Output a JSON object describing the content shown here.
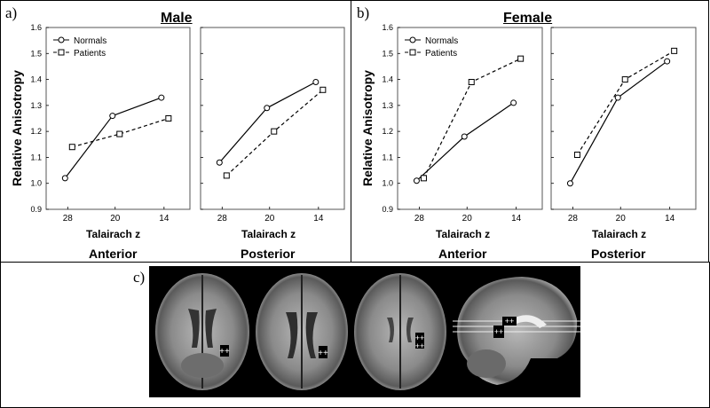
{
  "panels": {
    "a": {
      "letter": "a)",
      "title": "Male"
    },
    "b": {
      "letter": "b)",
      "title": "Female"
    },
    "c": {
      "letter": "c)"
    }
  },
  "axis_text": {
    "ylabel": "Relative Anisotropy",
    "xlabel": "Talairach z",
    "region_anterior": "Anterior",
    "region_posterior": "Posterior"
  },
  "legend": {
    "normals": "Normals",
    "patients": "Patients"
  },
  "colors": {
    "line": "#000000",
    "marker_fill": "#ffffff",
    "grid_border": "#555555"
  },
  "chart_data": [
    {
      "type": "line",
      "panel": "a",
      "sex": "Male",
      "region": "Anterior",
      "categories": [
        "28",
        "20",
        "14"
      ],
      "xlabel": "Talairach z",
      "ylabel": "Relative Anisotropy",
      "ylim": [
        0.9,
        1.6
      ],
      "yticks": [
        0.9,
        1.0,
        1.1,
        1.2,
        1.3,
        1.4,
        1.5,
        1.6
      ],
      "legend_position": "top-left",
      "series": [
        {
          "name": "Normals",
          "marker": "circle",
          "line": "solid",
          "values": [
            1.02,
            1.26,
            1.33
          ]
        },
        {
          "name": "Patients",
          "marker": "square",
          "line": "dashed",
          "values": [
            1.14,
            1.19,
            1.25
          ]
        }
      ]
    },
    {
      "type": "line",
      "panel": "a",
      "sex": "Male",
      "region": "Posterior",
      "categories": [
        "28",
        "20",
        "14"
      ],
      "xlabel": "Talairach z",
      "ylim": [
        0.9,
        1.6
      ],
      "series": [
        {
          "name": "Normals",
          "marker": "circle",
          "line": "solid",
          "values": [
            1.08,
            1.29,
            1.39
          ]
        },
        {
          "name": "Patients",
          "marker": "square",
          "line": "dashed",
          "values": [
            1.03,
            1.2,
            1.36
          ]
        }
      ]
    },
    {
      "type": "line",
      "panel": "b",
      "sex": "Female",
      "region": "Anterior",
      "categories": [
        "28",
        "20",
        "14"
      ],
      "xlabel": "Talairach z",
      "ylabel": "Relative Anisotropy",
      "ylim": [
        0.9,
        1.6
      ],
      "yticks": [
        0.9,
        1.0,
        1.1,
        1.2,
        1.3,
        1.4,
        1.5,
        1.6
      ],
      "legend_position": "top-left",
      "series": [
        {
          "name": "Normals",
          "marker": "circle",
          "line": "solid",
          "values": [
            1.01,
            1.18,
            1.31
          ]
        },
        {
          "name": "Patients",
          "marker": "square",
          "line": "dashed",
          "values": [
            1.02,
            1.39,
            1.48
          ]
        }
      ]
    },
    {
      "type": "line",
      "panel": "b",
      "sex": "Female",
      "region": "Posterior",
      "categories": [
        "28",
        "20",
        "14"
      ],
      "xlabel": "Talairach z",
      "ylim": [
        0.9,
        1.6
      ],
      "series": [
        {
          "name": "Normals",
          "marker": "circle",
          "line": "solid",
          "values": [
            1.0,
            1.33,
            1.47
          ]
        },
        {
          "name": "Patients",
          "marker": "square",
          "line": "dashed",
          "values": [
            1.11,
            1.4,
            1.51
          ]
        }
      ]
    }
  ]
}
